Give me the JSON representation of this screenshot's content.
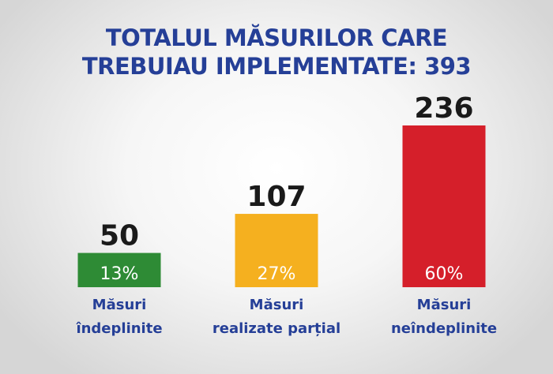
{
  "chart_data": {
    "type": "bar",
    "title": [
      "TOTALUL MĂSURILOR CARE",
      "TREBUIAU IMPLEMENTATE: 393"
    ],
    "categories": [
      [
        "Măsuri",
        "îndeplinite"
      ],
      [
        "Măsuri",
        "realizate parțial"
      ],
      [
        "Măsuri",
        "neîndeplinite"
      ]
    ],
    "values": [
      50,
      107,
      236
    ],
    "percent_labels": [
      "13%",
      "27%",
      "60%"
    ],
    "colors": [
      "#2e8b35",
      "#f5b01f",
      "#d51f2a"
    ],
    "title_color": "#253f97",
    "ylim": [
      0,
      236
    ],
    "grid": false,
    "legend": "none"
  }
}
